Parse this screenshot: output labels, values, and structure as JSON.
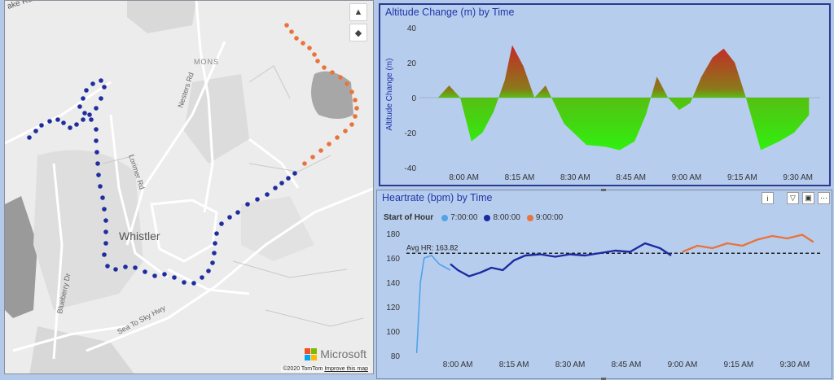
{
  "map": {
    "labels": {
      "lake_rd": "ake Rd",
      "mons": "MONS",
      "nesters_rd": "Nesters Rd",
      "lorimer_rd": "Lorimer Rd",
      "whistler": "Whistler",
      "blueberry_dr": "Blueberry Dr",
      "sea_to_sky": "Sea To Sky Hwy"
    },
    "brand": "Microsoft",
    "copyright": "©2020 TomTom",
    "improve_link": "Improve this map",
    "controls": {
      "north_icon": "bell-icon",
      "compass_icon": "compass-icon"
    },
    "colors": {
      "blue_route": "#1f2d9e",
      "orange_route": "#e8743b",
      "road": "#ffffff",
      "land": "#ececec",
      "park": "#d6d6d6",
      "water": "#a8a8a8"
    }
  },
  "altitude": {
    "title": "Altitude Change (m) by Time",
    "ylabel": "Altitude Change (m)",
    "yticks": [
      "40",
      "20",
      "0",
      "-20",
      "-40"
    ],
    "xticks": [
      "8:00 AM",
      "8:15 AM",
      "8:30 AM",
      "8:45 AM",
      "9:00 AM",
      "9:15 AM",
      "9:30 AM"
    ],
    "colors": {
      "positive": "#c0392b",
      "negative": "#33ee11"
    }
  },
  "heartrate": {
    "title": "Heartrate (bpm) by Time",
    "legend_title": "Start of Hour",
    "legend": [
      {
        "label": "7:00:00",
        "color": "#4fa3e8"
      },
      {
        "label": "8:00:00",
        "color": "#1a2ba0"
      },
      {
        "label": "9:00:00",
        "color": "#e8743b"
      }
    ],
    "avg_label": "Avg HR: 163.82",
    "yticks": [
      "180",
      "160",
      "140",
      "120",
      "100",
      "80"
    ],
    "xticks": [
      "8:00 AM",
      "8:15 AM",
      "8:30 AM",
      "8:45 AM",
      "9:00 AM",
      "9:15 AM",
      "9:30 AM"
    ],
    "buttons": {
      "info": "i",
      "filter": "filter-icon",
      "focus": "focus-icon",
      "more": "⋯"
    }
  },
  "chart_data": [
    {
      "type": "area",
      "title": "Altitude Change (m) by Time",
      "xlabel": "",
      "ylabel": "Altitude Change (m)",
      "ylim": [
        -40,
        40
      ],
      "x": [
        "7:53 AM",
        "7:56 AM",
        "7:59 AM",
        "8:02 AM",
        "8:05 AM",
        "8:08 AM",
        "8:11 AM",
        "8:13 AM",
        "8:16 AM",
        "8:19 AM",
        "8:22 AM",
        "8:27 AM",
        "8:33 AM",
        "8:38 AM",
        "8:42 AM",
        "8:46 AM",
        "8:49 AM",
        "8:52 AM",
        "8:55 AM",
        "8:58 AM",
        "9:01 AM",
        "9:04 AM",
        "9:07 AM",
        "9:10 AM",
        "9:13 AM",
        "9:16 AM",
        "9:20 AM",
        "9:25 AM",
        "9:29 AM",
        "9:33 AM"
      ],
      "values": [
        0,
        7,
        0,
        -25,
        -20,
        -8,
        10,
        30,
        18,
        0,
        7,
        -15,
        -27,
        -28,
        -30,
        -25,
        -10,
        12,
        0,
        -7,
        -3,
        12,
        23,
        28,
        20,
        0,
        -30,
        -25,
        -20,
        -10
      ]
    },
    {
      "type": "line",
      "title": "Heartrate (bpm) by Time",
      "legend_title": "Start of Hour",
      "ylim": [
        80,
        180
      ],
      "x": [
        "7:49 AM",
        "7:50 AM",
        "7:51 AM",
        "7:53 AM",
        "7:55 AM",
        "7:58 AM",
        "8:00 AM",
        "8:03 AM",
        "8:06 AM",
        "8:09 AM",
        "8:12 AM",
        "8:15 AM",
        "8:18 AM",
        "8:22 AM",
        "8:26 AM",
        "8:30 AM",
        "8:34 AM",
        "8:38 AM",
        "8:42 AM",
        "8:46 AM",
        "8:50 AM",
        "8:54 AM",
        "8:57 AM",
        "9:00 AM",
        "9:04 AM",
        "9:08 AM",
        "9:12 AM",
        "9:16 AM",
        "9:20 AM",
        "9:24 AM",
        "9:28 AM",
        "9:32 AM",
        "9:35 AM"
      ],
      "series": [
        {
          "name": "7:00:00",
          "values": [
            82,
            140,
            160,
            162,
            155,
            150,
            null,
            null,
            null,
            null,
            null,
            null,
            null,
            null,
            null,
            null,
            null,
            null,
            null,
            null,
            null,
            null,
            null,
            null,
            null,
            null,
            null,
            null,
            null,
            null,
            null,
            null,
            null
          ]
        },
        {
          "name": "8:00:00",
          "values": [
            null,
            null,
            null,
            null,
            null,
            155,
            150,
            145,
            148,
            152,
            150,
            158,
            162,
            163,
            161,
            163,
            162,
            164,
            166,
            165,
            172,
            168,
            162,
            null,
            null,
            null,
            null,
            null,
            null,
            null,
            null,
            null,
            null
          ]
        },
        {
          "name": "9:00:00",
          "values": [
            null,
            null,
            null,
            null,
            null,
            null,
            null,
            null,
            null,
            null,
            null,
            null,
            null,
            null,
            null,
            null,
            null,
            null,
            null,
            null,
            null,
            null,
            null,
            165,
            170,
            168,
            172,
            170,
            175,
            178,
            176,
            179,
            173
          ]
        }
      ],
      "reference_line": {
        "label": "Avg HR: 163.82",
        "value": 163.82
      }
    }
  ]
}
